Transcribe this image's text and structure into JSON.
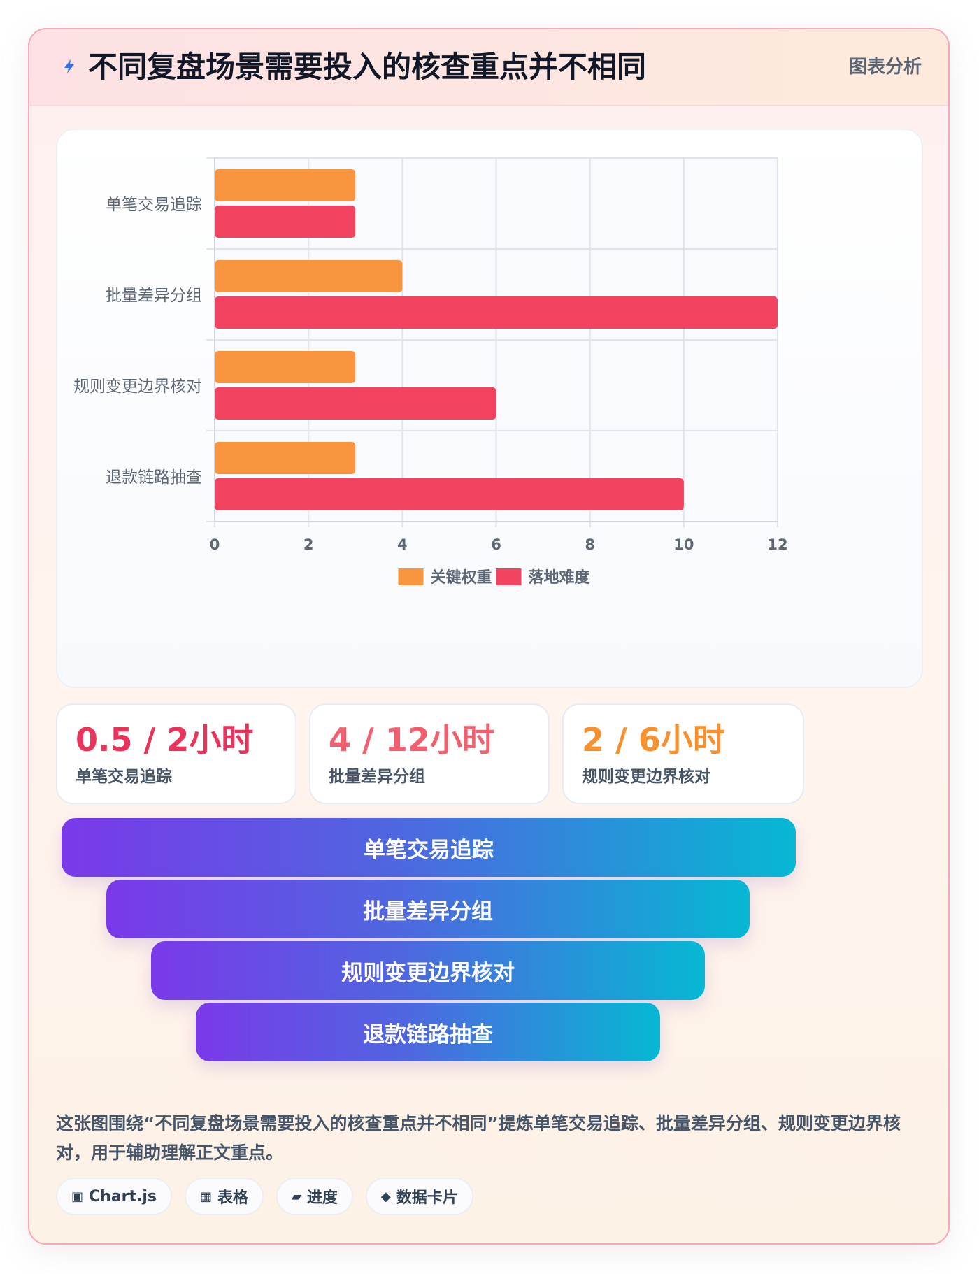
{
  "header": {
    "title": "不同复盘场景需要投入的核查重点并不相同",
    "tag": "图表分析",
    "icon": "lightning-bolt-icon"
  },
  "colors": {
    "series_1": "#f9943f",
    "series_2": "#f24361",
    "stat_1": "#e8345a",
    "stat_2": "#f2606f",
    "stat_3": "#f7902e",
    "funnel_start": "#7a39e9",
    "funnel_end": "#06b8d3"
  },
  "chart_data": {
    "type": "bar",
    "orientation": "horizontal",
    "categories": [
      "单笔交易追踪",
      "批量差异分组",
      "规则变更边界核对",
      "退款链路抽查"
    ],
    "series": [
      {
        "name": "关键权重",
        "values": [
          3,
          4,
          3,
          3
        ]
      },
      {
        "name": "落地难度",
        "values": [
          3,
          12,
          6,
          10
        ]
      }
    ],
    "xlim": [
      0,
      12
    ],
    "xticks": [
      "0",
      "2",
      "4",
      "6",
      "8",
      "10",
      "12"
    ],
    "grid": true,
    "legend": "bottom"
  },
  "stats": [
    {
      "value": "0.5 / 2小时",
      "label": "单笔交易追踪"
    },
    {
      "value": "4 / 12小时",
      "label": "批量差异分组"
    },
    {
      "value": "2 / 6小时",
      "label": "规则变更边界核对"
    }
  ],
  "funnel": [
    "单笔交易追踪",
    "批量差异分组",
    "规则变更边界核对",
    "退款链路抽查"
  ],
  "summary": "这张图围绕“不同复盘场景需要投入的核查重点并不相同”提炼单笔交易追踪、批量差异分组、规则变更边界核对，用于辅助理解正文重点。",
  "chips": [
    {
      "icon": "▣",
      "label": "Chart.js",
      "icon_name": "chart-icon"
    },
    {
      "icon": "▦",
      "label": "表格",
      "icon_name": "table-icon"
    },
    {
      "icon": "▰",
      "label": "进度",
      "icon_name": "progress-icon"
    },
    {
      "icon": "◆",
      "label": "数据卡片",
      "icon_name": "card-icon"
    }
  ]
}
